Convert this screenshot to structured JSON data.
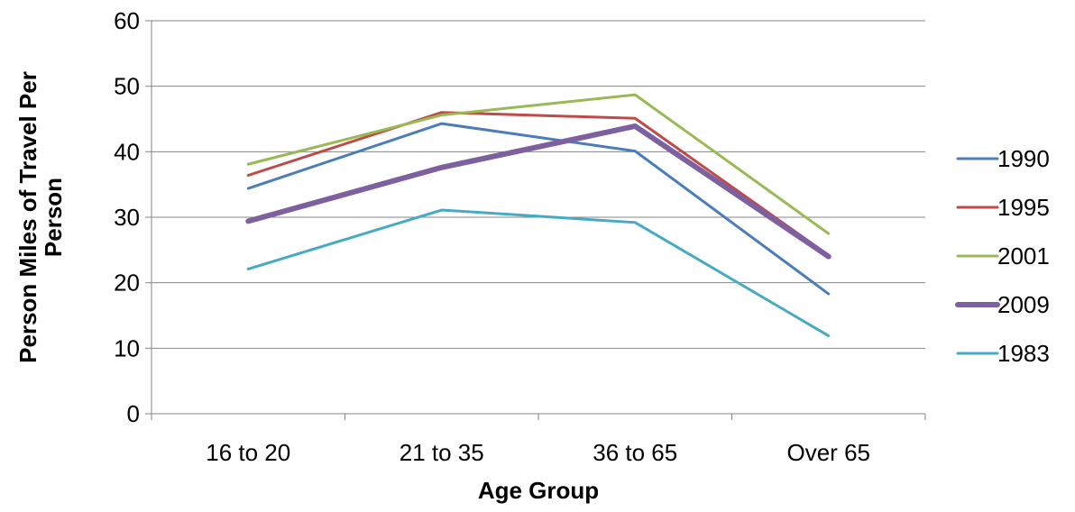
{
  "chart_data": {
    "type": "line",
    "categories": [
      "16 to 20",
      "21 to 35",
      "36 to 65",
      "Over 65"
    ],
    "xlabel": "Age Group",
    "ylabel": "Person Miles of Travel Per Person",
    "ylabel_lines": [
      "Person Miles of Travel Per",
      "Person"
    ],
    "ylim": [
      0,
      60
    ],
    "yticks": [
      0,
      10,
      20,
      30,
      40,
      50,
      60
    ],
    "grid": "horizontal",
    "legend_position": "right",
    "series": [
      {
        "name": "1990",
        "values": [
          34.4,
          44.3,
          40.1,
          18.3
        ],
        "color": "#4a7ebb",
        "width": 3
      },
      {
        "name": "1995",
        "values": [
          36.4,
          46.0,
          45.1,
          24.2
        ],
        "color": "#be4b48",
        "width": 3
      },
      {
        "name": "2001",
        "values": [
          38.1,
          45.6,
          48.7,
          27.5
        ],
        "color": "#98b954",
        "width": 3
      },
      {
        "name": "2009",
        "values": [
          29.4,
          37.6,
          43.9,
          24.0
        ],
        "color": "#7d60a0",
        "width": 6
      },
      {
        "name": "1983",
        "values": [
          22.1,
          31.1,
          29.2,
          11.9
        ],
        "color": "#46aac5",
        "width": 3
      }
    ]
  }
}
